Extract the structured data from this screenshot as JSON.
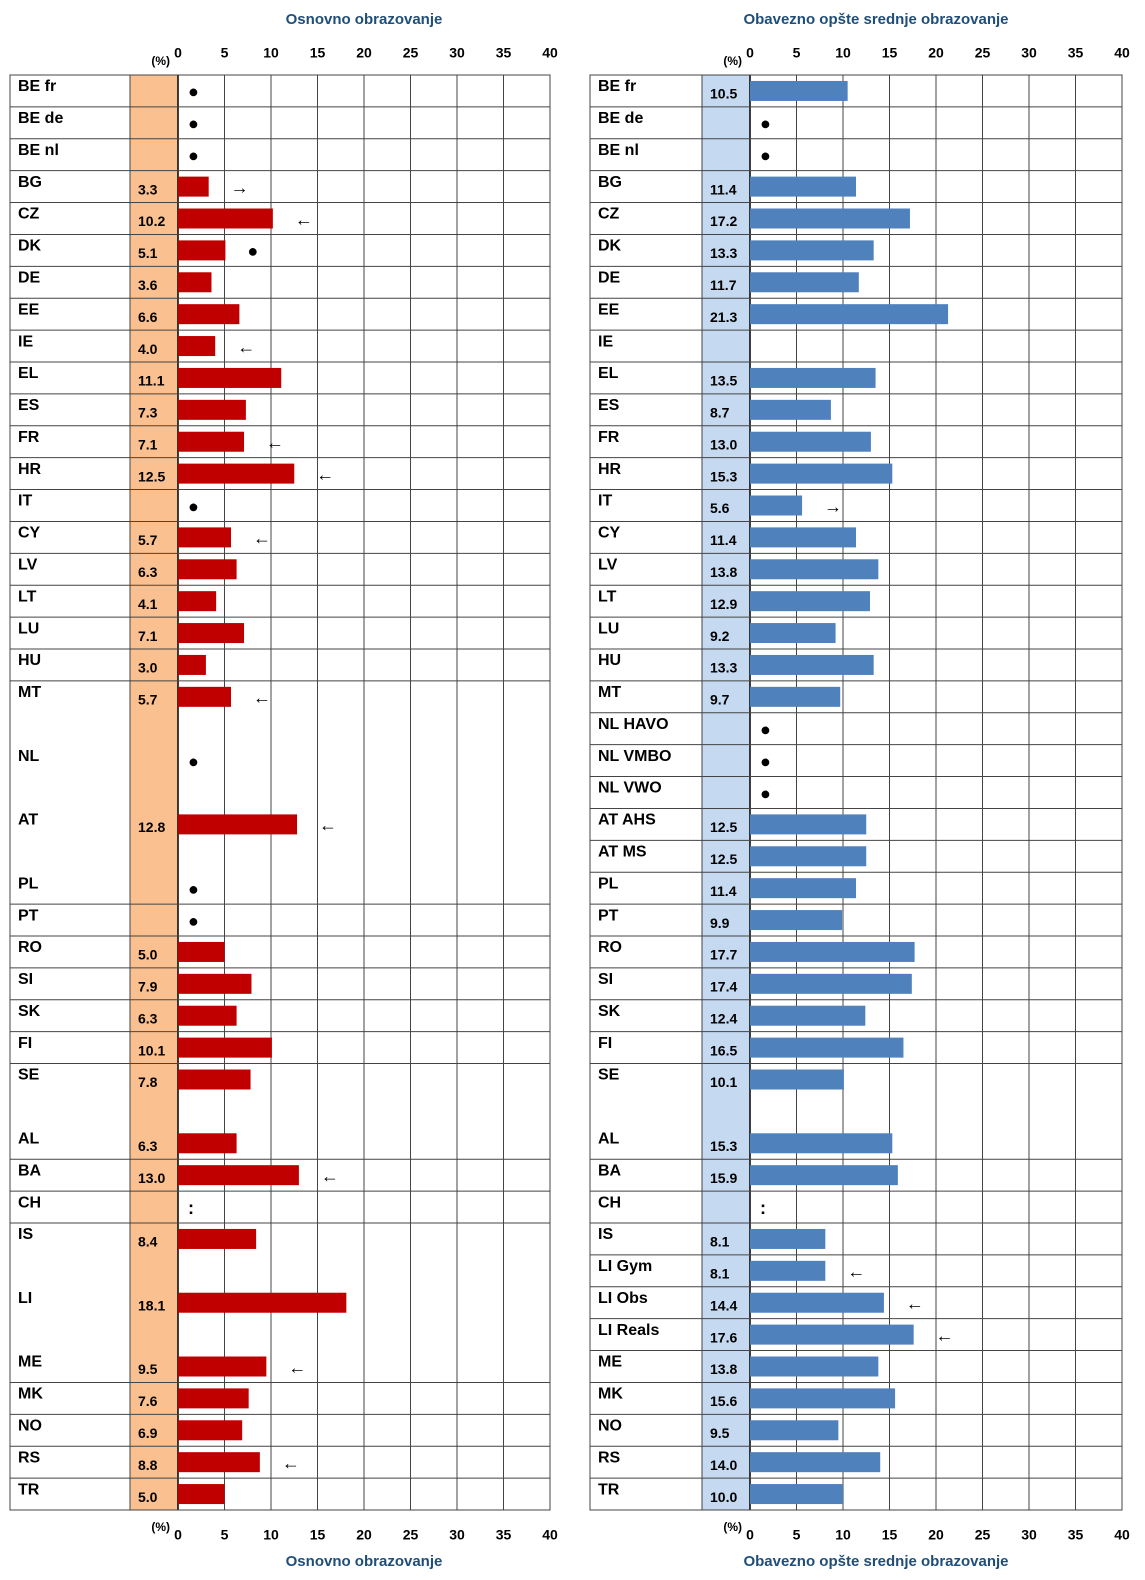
{
  "chart_data": [
    {
      "type": "bar",
      "orientation": "horizontal",
      "title": "Osnovno obrazovanje",
      "axis_label": "(%)",
      "color": "#c00000",
      "value_column_color": "#fac090",
      "xlim": [
        0,
        40
      ],
      "xticks": [
        0,
        5,
        10,
        15,
        20,
        25,
        30,
        35,
        40
      ],
      "grid": true,
      "categories": [
        "BE fr",
        "BE de",
        "BE nl",
        "BG",
        "CZ",
        "DK",
        "DE",
        "EE",
        "IE",
        "EL",
        "ES",
        "FR",
        "HR",
        "IT",
        "CY",
        "LV",
        "LT",
        "LU",
        "HU",
        "MT",
        null,
        "NL",
        null,
        "AT",
        null,
        "PL",
        "PT",
        "RO",
        "SI",
        "SK",
        "FI",
        "SE",
        null,
        "AL",
        "BA",
        "CH",
        "IS",
        null,
        "LI",
        null,
        "ME",
        "MK",
        "NO",
        "RS",
        "TR"
      ],
      "values": [
        null,
        null,
        null,
        3.3,
        10.2,
        5.1,
        3.6,
        6.6,
        4.0,
        11.1,
        7.3,
        7.1,
        12.5,
        null,
        5.7,
        6.3,
        4.1,
        7.1,
        3.0,
        5.7,
        null,
        null,
        null,
        12.8,
        null,
        null,
        null,
        5.0,
        7.9,
        6.3,
        10.1,
        7.8,
        null,
        6.3,
        13.0,
        null,
        8.4,
        null,
        18.1,
        null,
        9.5,
        7.6,
        6.9,
        8.8,
        5.0
      ],
      "value_labels": [
        null,
        null,
        null,
        "3.3",
        "10.2",
        "5.1",
        "3.6",
        "6.6",
        "4.0",
        "11.1",
        "7.3",
        "7.1",
        "12.5",
        null,
        "5.7",
        "6.3",
        "4.1",
        "7.1",
        "3.0",
        "5.7",
        null,
        null,
        null,
        "12.8",
        null,
        null,
        null,
        "5.0",
        "7.9",
        "6.3",
        "10.1",
        "7.8",
        null,
        "6.3",
        "13.0",
        null,
        "8.4",
        null,
        "18.1",
        null,
        "9.5",
        "7.6",
        "6.9",
        "8.8",
        "5.0"
      ],
      "symbols": [
        "●",
        "●",
        "●",
        "→",
        "←",
        "●",
        null,
        null,
        "←",
        null,
        null,
        "←",
        "←",
        "●",
        "←",
        null,
        null,
        null,
        null,
        "←",
        null,
        "●",
        null,
        "←",
        null,
        "●",
        "●",
        null,
        null,
        null,
        null,
        null,
        null,
        null,
        "←",
        ":",
        null,
        null,
        null,
        null,
        "←",
        null,
        null,
        "←",
        null
      ]
    },
    {
      "type": "bar",
      "orientation": "horizontal",
      "title": "Obavezno opšte srednje obrazovanje",
      "axis_label": "(%)",
      "color": "#4f81bd",
      "value_column_color": "#c5d9f1",
      "xlim": [
        0,
        40
      ],
      "xticks": [
        0,
        5,
        10,
        15,
        20,
        25,
        30,
        35,
        40
      ],
      "grid": true,
      "categories": [
        "BE fr",
        "BE de",
        "BE nl",
        "BG",
        "CZ",
        "DK",
        "DE",
        "EE",
        "IE",
        "EL",
        "ES",
        "FR",
        "HR",
        "IT",
        "CY",
        "LV",
        "LT",
        "LU",
        "HU",
        "MT",
        "NL HAVO",
        "NL VMBO",
        "NL VWO",
        "AT AHS",
        "AT MS",
        "PL",
        "PT",
        "RO",
        "SI",
        "SK",
        "FI",
        "SE",
        null,
        "AL",
        "BA",
        "CH",
        "IS",
        "LI Gym",
        "LI Obs",
        "LI Reals",
        "ME",
        "MK",
        "NO",
        "RS",
        "TR"
      ],
      "values": [
        10.5,
        null,
        null,
        11.4,
        17.2,
        13.3,
        11.7,
        21.3,
        null,
        13.5,
        8.7,
        13.0,
        15.3,
        5.6,
        11.4,
        13.8,
        12.9,
        9.2,
        13.3,
        9.7,
        null,
        null,
        null,
        12.5,
        12.5,
        11.4,
        9.9,
        17.7,
        17.4,
        12.4,
        16.5,
        10.1,
        null,
        15.3,
        15.9,
        null,
        8.1,
        8.1,
        14.4,
        17.6,
        13.8,
        15.6,
        9.5,
        14.0,
        10.0
      ],
      "value_labels": [
        "10.5",
        null,
        null,
        "11.4",
        "17.2",
        "13.3",
        "11.7",
        "21.3",
        null,
        "13.5",
        "8.7",
        "13.0",
        "15.3",
        "5.6",
        "11.4",
        "13.8",
        "12.9",
        "9.2",
        "13.3",
        "9.7",
        null,
        null,
        null,
        "12.5",
        "12.5",
        "11.4",
        "9.9",
        "17.7",
        "17.4",
        "12.4",
        "16.5",
        "10.1",
        null,
        "15.3",
        "15.9",
        null,
        "8.1",
        "8.1",
        "14.4",
        "17.6",
        "13.8",
        "15.6",
        "9.5",
        "14.0",
        "10.0"
      ],
      "symbols": [
        null,
        "●",
        "●",
        null,
        null,
        null,
        null,
        null,
        null,
        null,
        null,
        null,
        null,
        "→",
        null,
        null,
        null,
        null,
        null,
        null,
        "●",
        "●",
        "●",
        null,
        null,
        null,
        null,
        null,
        null,
        null,
        null,
        null,
        null,
        null,
        null,
        ":",
        null,
        "←",
        "←",
        "←",
        null,
        null,
        null,
        null,
        null
      ]
    }
  ]
}
